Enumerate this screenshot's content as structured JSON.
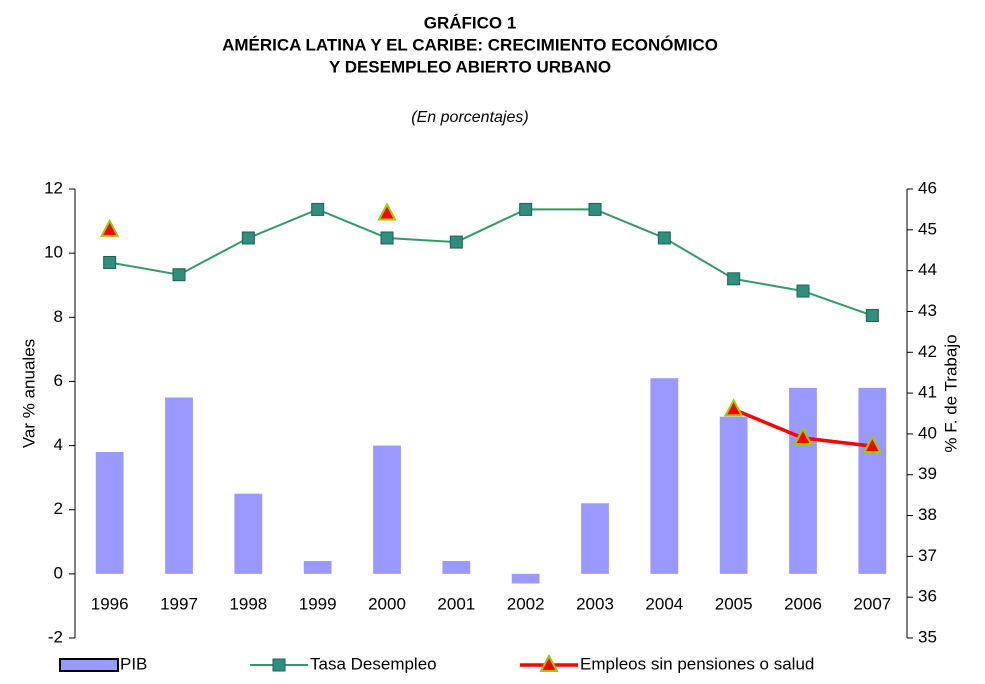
{
  "chart_data": {
    "type": "bar",
    "title": [
      "GRÁFICO 1",
      "AMÉRICA LATINA Y EL CARIBE: CRECIMIENTO ECONÓMICO",
      "Y DESEMPLEO ABIERTO URBANO"
    ],
    "subtitle": "(En porcentajes)",
    "y_label": "Var % anuales",
    "y2_label": "% F. de Trabajo",
    "categories": [
      "1996",
      "1997",
      "1998",
      "1999",
      "2000",
      "2001",
      "2002",
      "2003",
      "2004",
      "2005",
      "2006",
      "2007"
    ],
    "ylim": [
      -2,
      12
    ],
    "yticks": [
      -2,
      0,
      2,
      4,
      6,
      8,
      10,
      12
    ],
    "y2lim": [
      35,
      46
    ],
    "y2ticks": [
      35,
      36,
      37,
      38,
      39,
      40,
      41,
      42,
      43,
      44,
      45,
      46
    ],
    "series": [
      {
        "name": "PIB",
        "type": "bar",
        "color": "#9999ff",
        "values": [
          3.8,
          5.5,
          2.5,
          0.4,
          4.0,
          0.4,
          -0.3,
          2.2,
          6.1,
          4.9,
          5.8,
          5.8
        ]
      },
      {
        "name": "Tasa Desempleo",
        "type": "line",
        "marker": "square",
        "color": "#339966",
        "axis": "y2",
        "values": [
          44.2,
          43.9,
          44.8,
          45.5,
          44.8,
          44.7,
          45.5,
          45.5,
          44.8,
          43.8,
          43.5,
          42.9
        ]
      },
      {
        "name": "Empleos sin pensiones o salud",
        "type": "line",
        "marker": "triangle",
        "color": "#ff0000",
        "axis": "y2",
        "values": [
          45.0,
          null,
          null,
          null,
          45.4,
          null,
          null,
          null,
          null,
          40.6,
          39.9,
          39.7
        ]
      }
    ]
  }
}
